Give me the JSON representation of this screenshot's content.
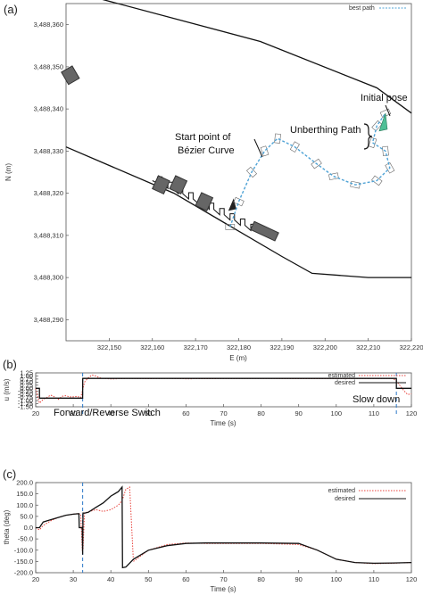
{
  "chart_data": [
    {
      "panel": "(a)",
      "type": "scatter",
      "xlabel": "E (m)",
      "ylabel": "N (m)",
      "xlim": [
        322140,
        322220
      ],
      "ylim": [
        3488285,
        3488365
      ],
      "x_ticks": [
        "322,150",
        "322,160",
        "322,170",
        "322,180",
        "322,190",
        "322,200",
        "322,210",
        "322,220"
      ],
      "x_tick_values": [
        322150,
        322160,
        322170,
        322180,
        322190,
        322200,
        322210,
        322220
      ],
      "y_ticks": [
        "3,488,360",
        "3,488,350",
        "3,488,340",
        "3,488,330",
        "3,488,320",
        "3,488,310",
        "3,488,300",
        "3,488,290"
      ],
      "y_tick_values": [
        3488360,
        3488350,
        3488340,
        3488330,
        3488320,
        3488310,
        3488300,
        3488290
      ],
      "legend": {
        "label": "best path",
        "placement": "top-right",
        "color": "#4fa3d6"
      },
      "upper_shore": [
        [
          322141,
          3488368
        ],
        [
          322185,
          3488356
        ],
        [
          322212,
          3488345
        ],
        [
          322220,
          3488339
        ]
      ],
      "lower_shore": [
        [
          322140,
          3488331
        ],
        [
          322165,
          3488320
        ],
        [
          322190,
          3488305
        ],
        [
          322197,
          3488301
        ],
        [
          322210,
          3488300
        ],
        [
          322220,
          3488300
        ]
      ],
      "best_path": [
        [
          322178,
          3488312
        ],
        [
          322180,
          3488318
        ],
        [
          322183,
          3488325
        ],
        [
          322186,
          3488330
        ],
        [
          322189,
          3488333
        ],
        [
          322193,
          3488331
        ],
        [
          322198,
          3488327
        ],
        [
          322202,
          3488324
        ],
        [
          322207,
          3488322
        ],
        [
          322212,
          3488323
        ],
        [
          322215,
          3488326
        ],
        [
          322214,
          3488330
        ],
        [
          322211,
          3488332
        ],
        [
          322212,
          3488336
        ],
        [
          322214,
          3488339
        ]
      ],
      "obstacles": [
        [
          322141,
          3488348
        ],
        [
          322162,
          3488322
        ],
        [
          322166,
          3488322
        ],
        [
          322172,
          3488318
        ],
        [
          322186,
          3488311
        ]
      ],
      "annotations": [
        {
          "text": "Initial pose",
          "x": 322210,
          "y": 3488343
        },
        {
          "text": "Unberthing Path",
          "x": 322196,
          "y": 3488334
        },
        {
          "text": "Start point of",
          "x": 322175,
          "y": 3488333
        },
        {
          "text": "Bézier Curve",
          "x": 322175,
          "y": 3488330
        }
      ]
    },
    {
      "panel": "(b)",
      "type": "line",
      "xlabel": "Time (s)",
      "ylabel": "u (m/s)",
      "xlim": [
        20,
        120
      ],
      "ylim": [
        -1.5,
        1.25
      ],
      "x_ticks": [
        "20",
        "30",
        "40",
        "50",
        "60",
        "70",
        "80",
        "90",
        "100",
        "110",
        "120"
      ],
      "x_tick_values": [
        20,
        30,
        40,
        50,
        60,
        70,
        80,
        90,
        100,
        110,
        120
      ],
      "y_ticks": [
        "1.25",
        "1.00",
        "0.75",
        "0.50",
        "0.25",
        "0.00",
        "-0.25",
        "-0.50",
        "-0.75",
        "-1.00",
        "-1.25",
        "-1.50"
      ],
      "y_tick_values": [
        1.25,
        1.0,
        0.75,
        0.5,
        0.25,
        0,
        -0.25,
        -0.5,
        -0.75,
        -1.0,
        -1.25,
        -1.5
      ],
      "legend_placement": "top-right",
      "series": [
        {
          "name": "estimated",
          "style": "dotted",
          "color": "#e8433c",
          "x": [
            20,
            21,
            22,
            23,
            24,
            25,
            26,
            27,
            28,
            29,
            30,
            31,
            32,
            33,
            34,
            35,
            36,
            37,
            38,
            40,
            45,
            50,
            55,
            60,
            70,
            80,
            90,
            100,
            110,
            115,
            116,
            117,
            118,
            119,
            120
          ],
          "y": [
            0,
            -1.2,
            -0.9,
            -0.75,
            -0.55,
            -0.7,
            -0.9,
            -0.65,
            -0.6,
            -0.7,
            -0.7,
            -0.65,
            -0.75,
            0.5,
            0.85,
            1.08,
            1.0,
            0.85,
            0.8,
            0.76,
            0.8,
            0.78,
            0.8,
            0.77,
            0.79,
            0.8,
            0.78,
            0.79,
            0.8,
            0.8,
            0.6,
            0.2,
            -0.2,
            -0.5,
            -0.45
          ]
        },
        {
          "name": "desired",
          "style": "solid",
          "color": "#111111",
          "x": [
            20,
            21,
            21.01,
            32.5,
            32.51,
            116,
            116.01,
            120
          ],
          "y": [
            0,
            0,
            -0.8,
            -0.8,
            0.8,
            0.8,
            0,
            0
          ]
        }
      ],
      "annotations": [
        {
          "text": "Forward/Reverse Switch",
          "x": 32.5
        },
        {
          "text": "Slow down",
          "x": 116
        }
      ],
      "markers_x": [
        32.5,
        116
      ]
    },
    {
      "panel": "(c)",
      "type": "line",
      "xlabel": "Time (s)",
      "ylabel": "theta (deg)",
      "xlim": [
        20,
        120
      ],
      "ylim": [
        -200,
        200
      ],
      "x_ticks": [
        "20",
        "30",
        "40",
        "50",
        "60",
        "70",
        "80",
        "90",
        "100",
        "110",
        "120"
      ],
      "x_tick_values": [
        20,
        30,
        40,
        50,
        60,
        70,
        80,
        90,
        100,
        110,
        120
      ],
      "y_ticks": [
        "200.0",
        "150.0",
        "100.0",
        "50.0",
        "0.0",
        "-50.0",
        "-100.0",
        "-150.0",
        "-200.0"
      ],
      "y_tick_values": [
        200,
        150,
        100,
        50,
        0,
        -50,
        -100,
        -150,
        -200
      ],
      "legend_placement": "top-right",
      "series": [
        {
          "name": "estimated",
          "style": "dotted",
          "color": "#e8433c",
          "x": [
            20,
            21,
            22,
            24,
            26,
            28,
            30,
            31,
            32,
            32.4,
            32.6,
            33,
            34,
            36,
            38,
            40,
            42,
            43,
            44,
            45,
            46,
            50,
            55,
            60,
            65,
            70,
            80,
            90,
            95,
            100,
            105,
            110,
            115,
            120
          ],
          "y": [
            0,
            -10,
            10,
            30,
            45,
            55,
            60,
            62,
            60,
            -100,
            -100,
            65,
            70,
            80,
            72,
            80,
            100,
            120,
            170,
            180,
            -150,
            -100,
            -75,
            -68,
            -70,
            -70,
            -70,
            -75,
            -100,
            -140,
            -155,
            -160,
            -158,
            -155
          ]
        },
        {
          "name": "desired",
          "style": "solid",
          "color": "#111111",
          "x": [
            20,
            21,
            22,
            23,
            25,
            28,
            30,
            31.5,
            31.6,
            32.4,
            32.5,
            32.6,
            33,
            33.1,
            34,
            36,
            38,
            40,
            42,
            43,
            43.1,
            44,
            46,
            50,
            55,
            60,
            65,
            70,
            80,
            90,
            95,
            100,
            105,
            110,
            115,
            120
          ],
          "y": [
            0,
            0,
            25,
            30,
            40,
            55,
            60,
            62,
            0,
            0,
            -120,
            65,
            65,
            65,
            68,
            90,
            110,
            140,
            160,
            180,
            -178,
            -175,
            -140,
            -100,
            -80,
            -70,
            -68,
            -68,
            -68,
            -70,
            -100,
            -140,
            -155,
            -158,
            -157,
            -155
          ]
        }
      ],
      "markers_x": [
        32.5
      ]
    }
  ]
}
